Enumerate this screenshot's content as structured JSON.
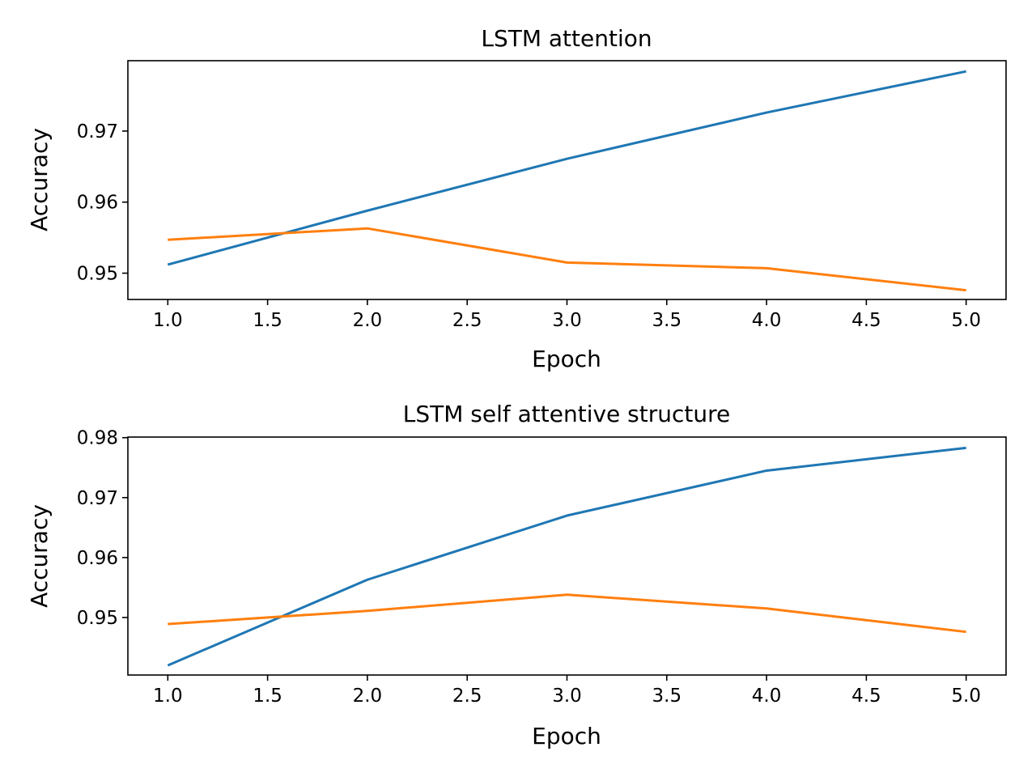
{
  "chart_data": [
    {
      "type": "line",
      "title": "LSTM attention",
      "xlabel": "Epoch",
      "ylabel": "Accuracy",
      "x": [
        1,
        2,
        3,
        4,
        5
      ],
      "xlim": [
        0.8,
        5.2
      ],
      "ylim": [
        0.9463,
        0.9799
      ],
      "xticks": [
        "1.0",
        "1.5",
        "2.0",
        "2.5",
        "3.0",
        "3.5",
        "4.0",
        "4.5",
        "5.0"
      ],
      "yticks": [
        "0.95",
        "0.96",
        "0.97"
      ],
      "grid": false,
      "series": [
        {
          "values": [
            0.9512,
            0.9588,
            0.9661,
            0.9726,
            0.9784
          ],
          "color": "#1f77b4"
        },
        {
          "values": [
            0.9547,
            0.9563,
            0.9515,
            0.9507,
            0.9476
          ],
          "color": "#ff7f0e"
        }
      ]
    },
    {
      "type": "line",
      "title": "LSTM self attentive structure",
      "xlabel": "Epoch",
      "ylabel": "Accuracy",
      "x": [
        1,
        2,
        3,
        4,
        5
      ],
      "xlim": [
        0.8,
        5.2
      ],
      "ylim": [
        0.9404,
        0.9801
      ],
      "xticks": [
        "1.0",
        "1.5",
        "2.0",
        "2.5",
        "3.0",
        "3.5",
        "4.0",
        "4.5",
        "5.0"
      ],
      "yticks": [
        "0.95",
        "0.96",
        "0.97",
        "0.98"
      ],
      "grid": false,
      "series": [
        {
          "values": [
            0.942,
            0.9563,
            0.967,
            0.9745,
            0.9783
          ],
          "color": "#1f77b4"
        },
        {
          "values": [
            0.9489,
            0.9511,
            0.9538,
            0.9515,
            0.9476
          ],
          "color": "#ff7f0e"
        }
      ]
    }
  ]
}
